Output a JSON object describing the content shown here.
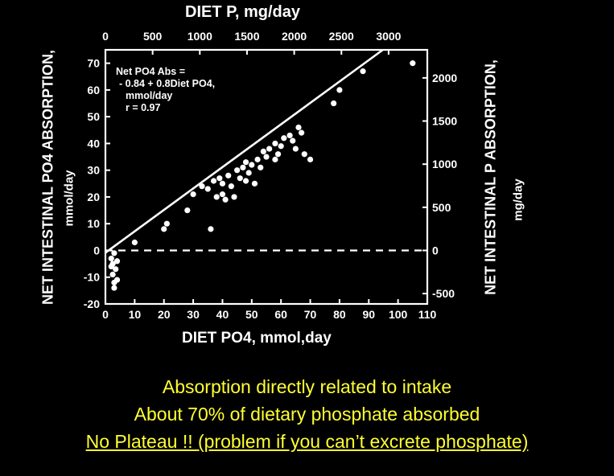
{
  "chart_data": {
    "type": "scatter",
    "title": "",
    "top_axis_label": "DIET P, mg/day",
    "top_ticks": [
      "0",
      "500",
      "1000",
      "1500",
      "2000",
      "2500",
      "3000"
    ],
    "top_tick_values": [
      0,
      500,
      1000,
      1500,
      2000,
      2500,
      3000
    ],
    "xlabel": "DIET PO4, mmol,day",
    "x_ticks": [
      "0",
      "10",
      "20",
      "30",
      "40",
      "50",
      "60",
      "70",
      "80",
      "90",
      "100",
      "110"
    ],
    "xlim": [
      0,
      110
    ],
    "ylabel_left_line1": "NET INTESTINAL  PO4  ABSORPTION,",
    "ylabel_left_line2": "mmol/day",
    "y_ticks": [
      "-20",
      "-10",
      "0",
      "10",
      "20",
      "30",
      "40",
      "50",
      "60",
      "70"
    ],
    "ylim": [
      -20,
      75
    ],
    "ylabel_right_line1": "NET  INTESTINAL  P  ABSORPTION,",
    "ylabel_right_line2": "mg/day",
    "right_ticks": [
      "-500",
      "0",
      "500",
      "1000",
      "1500",
      "2000"
    ],
    "right_tick_values": [
      -500,
      0,
      500,
      1000,
      1500,
      2000
    ],
    "equation": [
      "Net PO4 Abs =",
      "- 0.84 + 0.8Diet PO4,",
      "mmol/day",
      "r = 0.97"
    ],
    "regression": {
      "intercept": -0.84,
      "slope": 0.8
    },
    "zero_line": "dashed",
    "points": [
      [
        2,
        -3
      ],
      [
        2,
        -6
      ],
      [
        2.5,
        -9
      ],
      [
        3,
        -12
      ],
      [
        3,
        -14
      ],
      [
        3.5,
        -7
      ],
      [
        4,
        -4
      ],
      [
        3,
        -1
      ],
      [
        4,
        -11
      ],
      [
        2.5,
        -5
      ],
      [
        10,
        3
      ],
      [
        20,
        8
      ],
      [
        21,
        10
      ],
      [
        28,
        15
      ],
      [
        30,
        21
      ],
      [
        33,
        24
      ],
      [
        35,
        23
      ],
      [
        36,
        8
      ],
      [
        37,
        26
      ],
      [
        38,
        20
      ],
      [
        39,
        27
      ],
      [
        40,
        25
      ],
      [
        40,
        21
      ],
      [
        41,
        19
      ],
      [
        42,
        28
      ],
      [
        43,
        24
      ],
      [
        44,
        20
      ],
      [
        45,
        30
      ],
      [
        46,
        27
      ],
      [
        47,
        31
      ],
      [
        48,
        26
      ],
      [
        48,
        33
      ],
      [
        49,
        29
      ],
      [
        50,
        32
      ],
      [
        51,
        25
      ],
      [
        52,
        34
      ],
      [
        53,
        31
      ],
      [
        54,
        37
      ],
      [
        55,
        35
      ],
      [
        56,
        38
      ],
      [
        58,
        34
      ],
      [
        58,
        40
      ],
      [
        59,
        36
      ],
      [
        60,
        39
      ],
      [
        61,
        42
      ],
      [
        63,
        43
      ],
      [
        64,
        41
      ],
      [
        65,
        38
      ],
      [
        66,
        46
      ],
      [
        67,
        44
      ],
      [
        68,
        36
      ],
      [
        70,
        34
      ],
      [
        78,
        55
      ],
      [
        80,
        60
      ],
      [
        88,
        67
      ],
      [
        105,
        70
      ]
    ]
  },
  "caption": {
    "line1": "Absorption directly related to intake",
    "line2": "About 70% of dietary phosphate absorbed",
    "line3": "No Plateau !! (problem if you can’t excrete phosphate)"
  }
}
